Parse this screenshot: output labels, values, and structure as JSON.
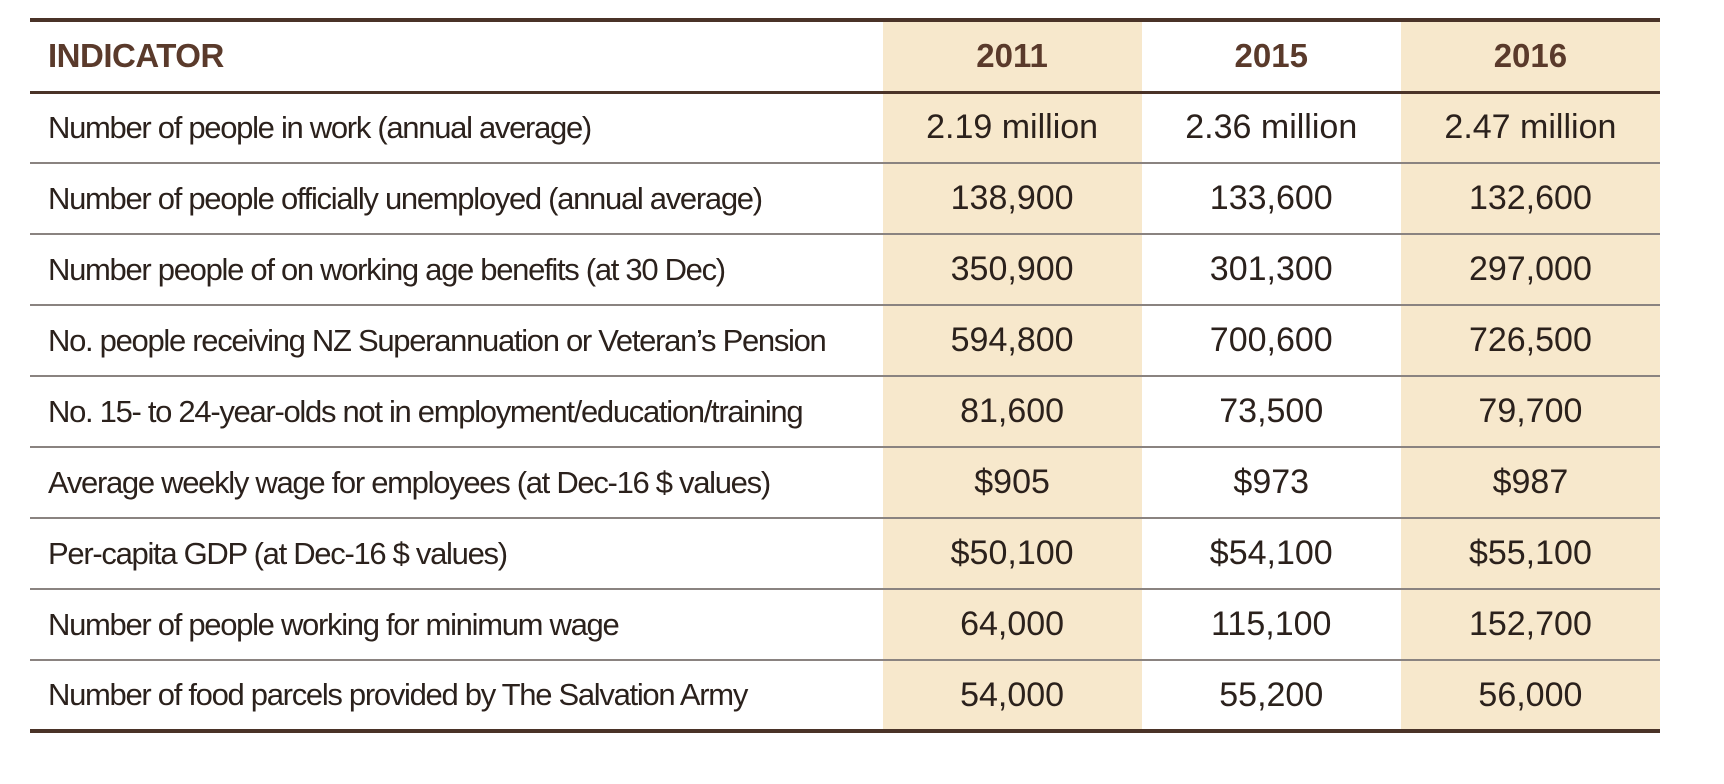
{
  "table": {
    "headers": [
      "INDICATOR",
      "2011",
      "2015",
      "2016"
    ],
    "rows": [
      {
        "indicator": "Number of  people in work (annual average)",
        "y2011": "2.19 million",
        "y2015": "2.36 million",
        "y2016": "2.47 million"
      },
      {
        "indicator": "Number of people officially unemployed (annual average)",
        "y2011": "138,900",
        "y2015": "133,600",
        "y2016": "132,600"
      },
      {
        "indicator": "Number people of on working age benefits (at 30 Dec)",
        "y2011": "350,900",
        "y2015": "301,300",
        "y2016": "297,000"
      },
      {
        "indicator": "No. people receiving NZ Superannuation or Veteran’s Pension",
        "y2011": "594,800",
        "y2015": "700,600",
        "y2016": "726,500"
      },
      {
        "indicator": "No. 15- to 24-year-olds not in employment/education/training",
        "y2011": "81,600",
        "y2015": "73,500",
        "y2016": "79,700"
      },
      {
        "indicator": "Average weekly wage for employees (at Dec-16 $ values)",
        "y2011": "$905",
        "y2015": "$973",
        "y2016": "$987"
      },
      {
        "indicator": "Per-capita GDP (at Dec-16 $ values)",
        "y2011": "$50,100",
        "y2015": "$54,100",
        "y2016": "$55,100"
      },
      {
        "indicator": "Number of people working for minimum wage",
        "y2011": "64,000",
        "y2015": "115,100",
        "y2016": "152,700"
      },
      {
        "indicator": "Number of food parcels provided by The Salvation Army",
        "y2011": "54,000",
        "y2015": "55,200",
        "y2016": "56,000"
      }
    ]
  },
  "colors": {
    "header_text": "#5a3a2b",
    "rule": "#4a3328",
    "highlight_column": "#f7e8cc"
  }
}
